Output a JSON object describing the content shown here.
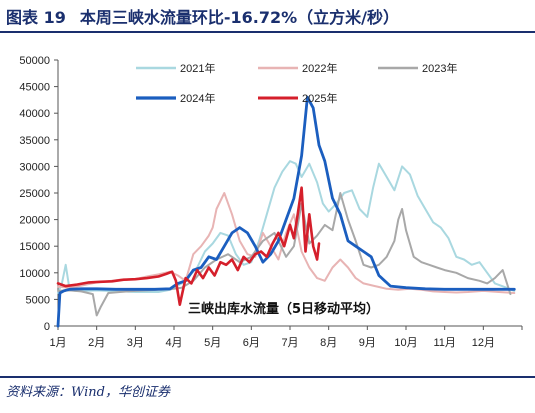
{
  "figure": {
    "number": "图表 19",
    "title": "本周三峡水流量环比-16.72%（立方米/秒）",
    "source": "资料来源：Wind，华创证券"
  },
  "chart_data": {
    "type": "line",
    "title": "本周三峡水流量环比-16.72%（立方米/秒）",
    "annotation": "三峡出库水流量（5日移动平均）",
    "xlabel": "",
    "ylabel": "",
    "xlim": [
      1,
      13
    ],
    "ylim": [
      0,
      50000
    ],
    "x_ticks": [
      {
        "value": 1,
        "label": "1月"
      },
      {
        "value": 2,
        "label": "2月"
      },
      {
        "value": 3,
        "label": "3月"
      },
      {
        "value": 4,
        "label": "4月"
      },
      {
        "value": 5,
        "label": "5月"
      },
      {
        "value": 6,
        "label": "6月"
      },
      {
        "value": 7,
        "label": "7月"
      },
      {
        "value": 8,
        "label": "8月"
      },
      {
        "value": 9,
        "label": "9月"
      },
      {
        "value": 10,
        "label": "10月"
      },
      {
        "value": 11,
        "label": "11月"
      },
      {
        "value": 12,
        "label": "12月"
      }
    ],
    "y_ticks": [
      0,
      5000,
      10000,
      15000,
      20000,
      25000,
      30000,
      35000,
      40000,
      45000,
      50000
    ],
    "grid": false,
    "legend_position": "top",
    "series": [
      {
        "name": "2021年",
        "color": "#a9d8e0",
        "width": 2,
        "x": [
          1.0,
          1.1,
          1.2,
          1.3,
          1.45,
          1.7,
          2.0,
          2.3,
          2.7,
          3.0,
          3.3,
          3.6,
          3.9,
          4.2,
          4.4,
          4.6,
          4.8,
          5.0,
          5.2,
          5.4,
          5.6,
          5.8,
          6.0,
          6.2,
          6.4,
          6.6,
          6.8,
          7.0,
          7.15,
          7.3,
          7.5,
          7.7,
          7.85,
          8.0,
          8.2,
          8.4,
          8.6,
          8.8,
          9.0,
          9.15,
          9.3,
          9.5,
          9.7,
          9.9,
          10.1,
          10.3,
          10.5,
          10.7,
          10.9,
          11.1,
          11.3,
          11.5,
          11.7,
          11.9,
          12.1,
          12.3,
          12.6,
          12.8
        ],
        "y": [
          6200,
          8000,
          11500,
          6800,
          6600,
          6600,
          6700,
          6600,
          6500,
          6400,
          6400,
          6400,
          6800,
          8000,
          9500,
          11000,
          14000,
          15500,
          17500,
          17000,
          13500,
          11500,
          12000,
          16000,
          21000,
          26000,
          29000,
          31000,
          30500,
          28000,
          30500,
          27000,
          23000,
          21500,
          23000,
          25000,
          25500,
          22000,
          20500,
          26000,
          30500,
          28000,
          25500,
          30000,
          28500,
          24500,
          22000,
          19500,
          18500,
          16500,
          13000,
          12500,
          11500,
          12000,
          10000,
          8000,
          7200,
          6600
        ]
      },
      {
        "name": "2022年",
        "color": "#e8b4b4",
        "width": 2,
        "x": [
          1.0,
          1.3,
          1.6,
          2.0,
          2.3,
          2.6,
          3.0,
          3.3,
          3.6,
          3.9,
          4.1,
          4.3,
          4.5,
          4.7,
          4.9,
          5.0,
          5.1,
          5.3,
          5.5,
          5.7,
          5.9,
          6.1,
          6.3,
          6.5,
          6.7,
          6.9,
          7.1,
          7.3,
          7.5,
          7.7,
          7.9,
          8.1,
          8.3,
          8.5,
          8.7,
          8.9,
          9.2,
          9.5,
          9.8,
          10.1,
          10.4,
          10.7,
          11.0,
          11.3,
          11.6,
          12.0,
          12.4,
          12.8
        ],
        "y": [
          7400,
          7200,
          7600,
          8200,
          8400,
          8700,
          8800,
          9300,
          9700,
          10200,
          9500,
          8500,
          13500,
          15000,
          17000,
          18500,
          22000,
          25000,
          21000,
          16000,
          13500,
          13000,
          17500,
          15000,
          12500,
          17500,
          21000,
          14000,
          11000,
          9000,
          8500,
          11000,
          12500,
          11000,
          9000,
          8000,
          7500,
          7000,
          6800,
          7000,
          6800,
          6500,
          6400,
          6300,
          6400,
          6600,
          6400,
          6200
        ]
      },
      {
        "name": "2023年",
        "color": "#a8a8a8",
        "width": 2,
        "x": [
          1.0,
          1.3,
          1.6,
          1.9,
          2.0,
          2.1,
          2.3,
          2.6,
          3.0,
          3.3,
          3.6,
          3.9,
          4.2,
          4.5,
          4.8,
          5.1,
          5.4,
          5.7,
          6.0,
          6.3,
          6.6,
          6.9,
          7.1,
          7.3,
          7.5,
          7.7,
          7.9,
          8.1,
          8.3,
          8.5,
          8.7,
          8.9,
          9.1,
          9.3,
          9.5,
          9.7,
          9.8,
          9.9,
          10.0,
          10.2,
          10.4,
          10.6,
          10.8,
          11.0,
          11.3,
          11.6,
          11.9,
          12.1,
          12.3,
          12.5,
          12.7
        ],
        "y": [
          6600,
          6700,
          6500,
          6000,
          2000,
          3500,
          6200,
          6400,
          6600,
          6700,
          6800,
          6900,
          7200,
          8500,
          11000,
          12500,
          13500,
          12000,
          13000,
          16000,
          17500,
          13000,
          15000,
          23000,
          15500,
          17000,
          19000,
          18000,
          25000,
          20000,
          16000,
          11500,
          11000,
          11500,
          13000,
          16000,
          20000,
          22000,
          18000,
          13000,
          12000,
          11500,
          11000,
          10500,
          10000,
          9000,
          8500,
          8000,
          9000,
          10500,
          6000
        ]
      },
      {
        "name": "2024年",
        "color": "#1b5ebf",
        "width": 2.8,
        "x": [
          1.0,
          1.05,
          1.15,
          1.3,
          1.6,
          2.0,
          2.5,
          3.0,
          3.5,
          3.9,
          4.1,
          4.3,
          4.5,
          4.7,
          4.9,
          5.1,
          5.3,
          5.5,
          5.7,
          5.9,
          6.1,
          6.3,
          6.5,
          6.7,
          6.9,
          7.1,
          7.3,
          7.45,
          7.6,
          7.75,
          7.9,
          8.1,
          8.3,
          8.5,
          8.7,
          8.9,
          9.1,
          9.3,
          9.6,
          10.0,
          10.5,
          11.0,
          11.5,
          12.0,
          12.4,
          12.8
        ],
        "y": [
          0,
          6200,
          6600,
          6900,
          7000,
          7000,
          6900,
          6900,
          6900,
          7000,
          8000,
          8500,
          10500,
          11000,
          13000,
          12500,
          15000,
          17500,
          18500,
          17500,
          15000,
          12000,
          13500,
          16000,
          20000,
          24000,
          32000,
          43000,
          41000,
          34000,
          31000,
          24000,
          21000,
          16000,
          15000,
          14000,
          13000,
          9500,
          7500,
          7200,
          7000,
          6900,
          6900,
          6900,
          6900,
          6900
        ]
      },
      {
        "name": "2025年",
        "color": "#d51f2b",
        "width": 2.6,
        "x": [
          1.0,
          1.2,
          1.5,
          1.8,
          2.1,
          2.4,
          2.7,
          3.0,
          3.3,
          3.6,
          3.8,
          3.95,
          4.05,
          4.15,
          4.3,
          4.45,
          4.6,
          4.75,
          4.9,
          5.05,
          5.2,
          5.35,
          5.5,
          5.65,
          5.8,
          5.95,
          6.1,
          6.25,
          6.4,
          6.55,
          6.7,
          6.85,
          7.0,
          7.1,
          7.2,
          7.3,
          7.4,
          7.5,
          7.6,
          7.7,
          7.75
        ],
        "y": [
          8000,
          7500,
          7800,
          8200,
          8300,
          8400,
          8700,
          8800,
          9000,
          9300,
          9800,
          10200,
          8500,
          4000,
          9000,
          8000,
          10500,
          9000,
          11000,
          9500,
          12000,
          11500,
          12500,
          10500,
          13000,
          12000,
          13500,
          14000,
          13000,
          15500,
          17500,
          15000,
          19000,
          16500,
          21000,
          26000,
          14000,
          21000,
          15000,
          12500,
          15500
        ]
      }
    ]
  }
}
